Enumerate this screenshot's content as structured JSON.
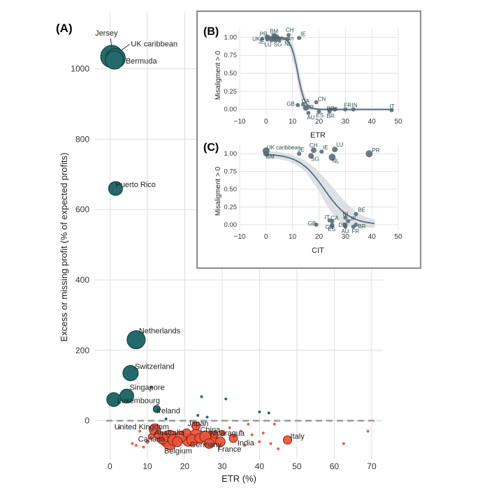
{
  "colors": {
    "teal": "#1c5f5f",
    "teal_fill": "#246a6a",
    "red": "#e8523a",
    "red_dark": "#8a2515",
    "grid": "#dddddd",
    "inset_gray": "#5b6b78",
    "band": "#d7dce0",
    "frame": "#8a8a8a",
    "dashed": "#999999"
  },
  "chart_data": [
    {
      "panel": "(A)",
      "type": "scatter",
      "xlabel": "ETR (%)",
      "ylabel": "Excess or missing profit (% of expected profits)",
      "xlim": [
        -4,
        73
      ],
      "ylim": [
        -110,
        1160
      ],
      "xticks": [
        0,
        10,
        20,
        30,
        40,
        50,
        60,
        70
      ],
      "yticks": [
        0,
        200,
        400,
        600,
        800,
        1000
      ],
      "tick_labels_x": [
        "0",
        "10",
        "20",
        "30",
        "40",
        "50",
        "60",
        "70"
      ],
      "tick_labels_y": [
        "0",
        "200",
        "400",
        "600",
        "800",
        "1000"
      ],
      "reference_line": 0,
      "positive_points": [
        {
          "name": "Jersey",
          "x": 0.5,
          "y": 1035,
          "size": 16
        },
        {
          "name": "UK caribbean",
          "x": 1.5,
          "y": 1030,
          "size": 14
        },
        {
          "name": "Bermuda",
          "x": 1.2,
          "y": 1025,
          "size": 13
        },
        {
          "name": "Puerto Rico",
          "x": 1.5,
          "y": 660,
          "size": 10
        },
        {
          "name": "Netherlands",
          "x": 7,
          "y": 230,
          "size": 13
        },
        {
          "name": "Switzerland",
          "x": 5.5,
          "y": 135,
          "size": 11
        },
        {
          "name": "Singapore",
          "x": 4.5,
          "y": 70,
          "size": 10
        },
        {
          "name": "Luxembourg",
          "x": 1,
          "y": 60,
          "size": 10
        },
        {
          "name": "Ireland",
          "x": 12.5,
          "y": 33,
          "size": 5
        },
        {
          "name": "",
          "x": 6,
          "y": 65,
          "size": 2
        },
        {
          "name": "",
          "x": 11,
          "y": 95,
          "size": 2
        },
        {
          "name": "",
          "x": 24.5,
          "y": 68,
          "size": 2
        },
        {
          "name": "",
          "x": 31,
          "y": 62,
          "size": 2
        },
        {
          "name": "",
          "x": 40,
          "y": 25,
          "size": 2
        },
        {
          "name": "",
          "x": 42.5,
          "y": 22,
          "size": 2
        },
        {
          "name": "",
          "x": 23.5,
          "y": 15,
          "size": 2
        },
        {
          "name": "",
          "x": 26,
          "y": 10,
          "size": 2
        },
        {
          "name": "",
          "x": 15,
          "y": 5,
          "size": 2
        }
      ],
      "negative_points": [
        {
          "name": "United Kingdom",
          "x": 12,
          "y": -25,
          "size": 8
        },
        {
          "name": "Japan",
          "x": 23,
          "y": -15,
          "size": 6
        },
        {
          "name": "Australia",
          "x": 16,
          "y": -45,
          "size": 9
        },
        {
          "name": "China",
          "x": 23,
          "y": -45,
          "size": 10
        },
        {
          "name": "Nicaragua",
          "x": 27,
          "y": -50,
          "size": 10
        },
        {
          "name": "Canada",
          "x": 15,
          "y": -55,
          "size": 9
        },
        {
          "name": "Germany",
          "x": 21,
          "y": -55,
          "size": 9
        },
        {
          "name": "India",
          "x": 33,
          "y": -50,
          "size": 6
        },
        {
          "name": "Belgium",
          "x": 16,
          "y": -65,
          "size": 9
        },
        {
          "name": "France",
          "x": 29.5,
          "y": -60,
          "size": 7
        },
        {
          "name": "Italy",
          "x": 47.5,
          "y": -55,
          "size": 6
        },
        {
          "name": "",
          "x": 14,
          "y": -50,
          "size": 8
        },
        {
          "name": "",
          "x": 17,
          "y": -55,
          "size": 8
        },
        {
          "name": "",
          "x": 19,
          "y": -45,
          "size": 8
        },
        {
          "name": "",
          "x": 20.5,
          "y": -35,
          "size": 6
        },
        {
          "name": "",
          "x": 22,
          "y": -55,
          "size": 8
        },
        {
          "name": "",
          "x": 24,
          "y": -50,
          "size": 7
        },
        {
          "name": "",
          "x": 25.5,
          "y": -45,
          "size": 8
        },
        {
          "name": "",
          "x": 18,
          "y": -60,
          "size": 7
        },
        {
          "name": "",
          "x": 13,
          "y": -40,
          "size": 6
        },
        {
          "name": "",
          "x": 26.5,
          "y": -65,
          "size": 7
        },
        {
          "name": "",
          "x": 28,
          "y": -40,
          "size": 5
        },
        {
          "name": "",
          "x": 30,
          "y": -35,
          "size": 4
        },
        {
          "name": "",
          "x": 11,
          "y": -45,
          "size": 4
        },
        {
          "name": "",
          "x": 10,
          "y": -60,
          "size": 3
        },
        {
          "name": "",
          "x": 7,
          "y": -70,
          "size": 2
        },
        {
          "name": "",
          "x": 9,
          "y": -75,
          "size": 2
        },
        {
          "name": "",
          "x": 6,
          "y": -65,
          "size": 2
        },
        {
          "name": "",
          "x": 8,
          "y": -30,
          "size": 2
        },
        {
          "name": "",
          "x": 2.5,
          "y": -20,
          "size": 2
        },
        {
          "name": "",
          "x": 35,
          "y": -30,
          "size": 2
        },
        {
          "name": "",
          "x": 37,
          "y": -10,
          "size": 2
        },
        {
          "name": "",
          "x": 38,
          "y": -40,
          "size": 2
        },
        {
          "name": "",
          "x": 40,
          "y": -60,
          "size": 2
        },
        {
          "name": "",
          "x": 41,
          "y": -35,
          "size": 2
        },
        {
          "name": "",
          "x": 43,
          "y": -65,
          "size": 2
        },
        {
          "name": "",
          "x": 44,
          "y": -10,
          "size": 2
        },
        {
          "name": "",
          "x": 45,
          "y": -80,
          "size": 2
        },
        {
          "name": "",
          "x": 36,
          "y": -70,
          "size": 2
        },
        {
          "name": "",
          "x": 32,
          "y": -20,
          "size": 2
        },
        {
          "name": "",
          "x": 62.5,
          "y": -65,
          "size": 2
        },
        {
          "name": "",
          "x": 69,
          "y": -30,
          "size": 2
        }
      ]
    },
    {
      "panel": "(B)",
      "type": "scatter",
      "xlabel": "ETR",
      "ylabel": "Misaligment > 0",
      "xlim": [
        -10,
        50
      ],
      "ylim": [
        -0.08,
        1.12
      ],
      "xticks": [
        -10,
        0,
        10,
        20,
        30,
        40,
        50
      ],
      "yticks": [
        0.0,
        0.25,
        0.5,
        0.75,
        1.0
      ],
      "tick_labels_x": [
        "−10",
        "0",
        "10",
        "20",
        "30",
        "40",
        "50"
      ],
      "tick_labels_y": [
        "0.00",
        "0.25",
        "0.50",
        "0.75",
        "1.00"
      ],
      "fit": "logistic",
      "points": [
        {
          "label": "PR",
          "x": 0.5,
          "y": 1.0,
          "size": 4
        },
        {
          "label": "BM",
          "x": 3,
          "y": 1.02,
          "size": 4
        },
        {
          "label": "UK",
          "x": -1.5,
          "y": 0.98,
          "size": 3
        },
        {
          "label": "caribbean",
          "x": 3.5,
          "y": 0.99,
          "size": 6
        },
        {
          "label": "JE",
          "x": 0.5,
          "y": 0.97,
          "size": 3
        },
        {
          "label": "LU",
          "x": 2,
          "y": 0.96,
          "size": 3
        },
        {
          "label": "SG",
          "x": 5,
          "y": 0.96,
          "size": 3
        },
        {
          "label": "NL",
          "x": 8,
          "y": 0.97,
          "size": 3
        },
        {
          "label": "CH",
          "x": 8.5,
          "y": 1.03,
          "size": 3
        },
        {
          "label": "IE",
          "x": 12.5,
          "y": 0.99,
          "size": 3
        },
        {
          "label": "GB",
          "x": 12,
          "y": 0.06,
          "size": 3
        },
        {
          "label": "CA",
          "x": 14,
          "y": 0.07,
          "size": 3
        },
        {
          "label": "JP",
          "x": 15,
          "y": 0.02,
          "size": 4
        },
        {
          "label": "AU",
          "x": 16,
          "y": -0.05,
          "size": 3
        },
        {
          "label": "CN",
          "x": 19,
          "y": 0.1,
          "size": 3
        },
        {
          "label": "ES",
          "x": 20,
          "y": -0.03,
          "size": 3
        },
        {
          "label": "BR",
          "x": 24,
          "y": -0.03,
          "size": 3
        },
        {
          "label": "DE",
          "x": 24,
          "y": 0.0,
          "size": 3
        },
        {
          "label": "NI",
          "x": 26,
          "y": 0.0,
          "size": 3
        },
        {
          "label": "FR",
          "x": 30,
          "y": 0.0,
          "size": 3
        },
        {
          "label": "IN",
          "x": 33,
          "y": 0.0,
          "size": 3
        },
        {
          "label": "IT",
          "x": 47.5,
          "y": -0.01,
          "size": 3
        }
      ]
    },
    {
      "panel": "(C)",
      "type": "scatter",
      "xlabel": "CIT",
      "ylabel": "Misaligment > 0",
      "xlim": [
        -10,
        50
      ],
      "ylim": [
        -0.08,
        1.12
      ],
      "xticks": [
        -10,
        0,
        10,
        20,
        30,
        40,
        50
      ],
      "yticks": [
        0.0,
        0.25,
        0.5,
        0.75,
        1.0
      ],
      "tick_labels_x": [
        "−10",
        "0",
        "10",
        "20",
        "30",
        "40",
        "50"
      ],
      "tick_labels_y": [
        "0.00",
        "0.25",
        "0.50",
        "0.75",
        "1.00"
      ],
      "fit": "logistic",
      "points": [
        {
          "label": "UK caribbean",
          "x": 0,
          "y": 1.04,
          "size": 5
        },
        {
          "label": "BM",
          "x": 0,
          "y": 1.0,
          "size": 4
        },
        {
          "label": "JE",
          "x": 12.5,
          "y": 1.0,
          "size": 3
        },
        {
          "label": "CH",
          "x": 18,
          "y": 1.05,
          "size": 4
        },
        {
          "label": "IE",
          "x": 21,
          "y": 1.03,
          "size": 3
        },
        {
          "label": "LU",
          "x": 26,
          "y": 1.06,
          "size": 4
        },
        {
          "label": "SG",
          "x": 17,
          "y": 0.97,
          "size": 4
        },
        {
          "label": "NL",
          "x": 25,
          "y": 0.95,
          "size": 5
        },
        {
          "label": "PR",
          "x": 39,
          "y": 1.0,
          "size": 5
        },
        {
          "label": "GB",
          "x": 19,
          "y": 0.0,
          "size": 3
        },
        {
          "label": "IT",
          "x": 24,
          "y": 0.06,
          "size": 3
        },
        {
          "label": "CA",
          "x": 25,
          "y": 0.05,
          "size": 3
        },
        {
          "label": "CN",
          "x": 25,
          "y": 0.0,
          "size": 3
        },
        {
          "label": "ES",
          "x": 25,
          "y": -0.02,
          "size": 3
        },
        {
          "label": "AU",
          "x": 30,
          "y": -0.03,
          "size": 3
        },
        {
          "label": "NI",
          "x": 30,
          "y": 0.1,
          "size": 3
        },
        {
          "label": "JP",
          "x": 31,
          "y": 0.05,
          "size": 3
        },
        {
          "label": "DE",
          "x": 30,
          "y": 0.0,
          "size": 3
        },
        {
          "label": "FR",
          "x": 33,
          "y": -0.03,
          "size": 3
        },
        {
          "label": "BE",
          "x": 34,
          "y": 0.15,
          "size": 3
        },
        {
          "label": "BR",
          "x": 34,
          "y": 0.0,
          "size": 3
        }
      ]
    }
  ]
}
